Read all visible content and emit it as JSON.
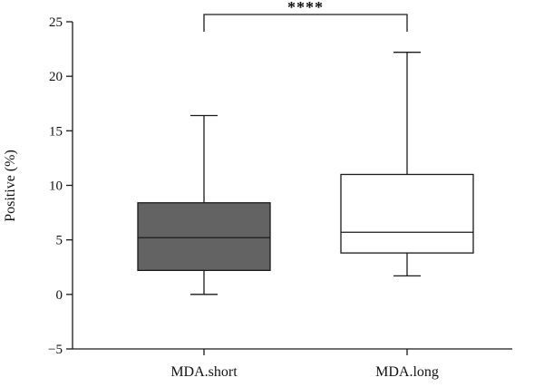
{
  "chart_data": {
    "type": "box",
    "title": "",
    "xlabel": "",
    "ylabel": "Positive (%)",
    "ylim": [
      -5,
      25
    ],
    "yticks": [
      25,
      20,
      15,
      10,
      5,
      0,
      -5
    ],
    "ytick_labels": [
      "25",
      "20",
      "15",
      "10",
      "5",
      "0",
      "−5"
    ],
    "grid": false,
    "legend": "none",
    "categories": [
      "MDA.short",
      "MDA.long"
    ],
    "boxes": [
      {
        "category": "MDA.short",
        "whisker_low": 0.0,
        "q1": 2.2,
        "median": 5.2,
        "q3": 8.4,
        "whisker_high": 16.4,
        "fill": "#636363"
      },
      {
        "category": "MDA.long",
        "whisker_low": 1.7,
        "q1": 3.8,
        "median": 5.7,
        "q3": 11.0,
        "whisker_high": 22.2,
        "fill": "#ffffff"
      }
    ],
    "significance": {
      "between": [
        "MDA.short",
        "MDA.long"
      ],
      "label": "****"
    }
  }
}
